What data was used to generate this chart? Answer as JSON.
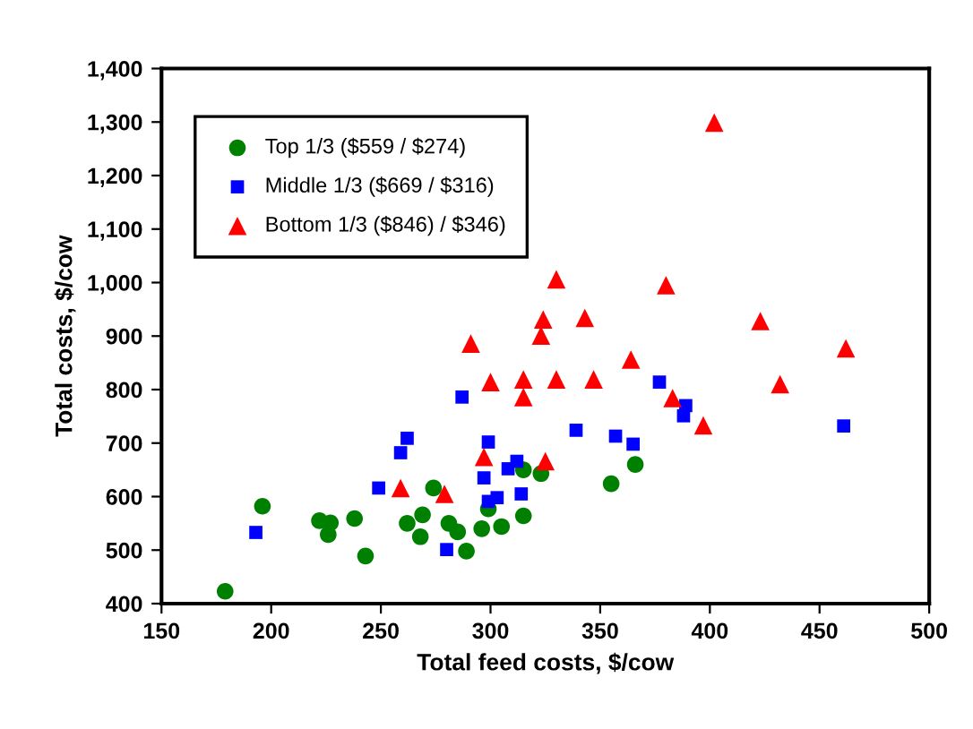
{
  "chart_data": {
    "type": "scatter",
    "xlabel": "Total feed costs, $/cow",
    "ylabel": "Total costs, $/cow",
    "xlim": [
      150,
      500
    ],
    "xticks": [
      150,
      200,
      250,
      300,
      350,
      400,
      450,
      500
    ],
    "ylim": [
      400,
      1400
    ],
    "yticks": [
      {
        "value": 400,
        "label": "400"
      },
      {
        "value": 500,
        "label": "500"
      },
      {
        "value": 600,
        "label": "600"
      },
      {
        "value": 700,
        "label": "700"
      },
      {
        "value": 800,
        "label": "800"
      },
      {
        "value": 900,
        "label": "900"
      },
      {
        "value": 1000,
        "label": "1,000"
      },
      {
        "value": 1100,
        "label": "1,100"
      },
      {
        "value": 1200,
        "label": "1,200"
      },
      {
        "value": 1300,
        "label": "1,300"
      },
      {
        "value": 1400,
        "label": "1,400"
      }
    ],
    "grid": false,
    "legend": "top left",
    "series": [
      {
        "name": "Top 1/3 ($559 / $274)",
        "color": "#008000",
        "marker": "circle",
        "x": [
          179,
          196,
          222,
          227,
          226,
          238,
          243,
          262,
          269,
          268,
          274,
          281,
          285,
          289,
          296,
          299,
          305,
          315,
          315,
          323,
          355,
          366
        ],
        "values": [
          423,
          582,
          555,
          551,
          529,
          559,
          489,
          550,
          566,
          525,
          616,
          550,
          534,
          498,
          540,
          577,
          544,
          650,
          564,
          643,
          624,
          660
        ]
      },
      {
        "name": "Middle 1/3 ($669 / $316)",
        "color": "#0000ff",
        "marker": "square",
        "x": [
          193,
          249,
          259,
          262,
          280,
          287,
          299,
          297,
          299,
          303,
          308,
          312,
          314,
          339,
          357,
          365,
          377,
          389,
          388,
          461
        ],
        "values": [
          533,
          616,
          682,
          709,
          501,
          786,
          702,
          635,
          591,
          598,
          652,
          666,
          605,
          724,
          713,
          698,
          814,
          770,
          751,
          732
        ]
      },
      {
        "name": "Bottom 1/3 ($846) / $346)",
        "color": "#ff0000",
        "marker": "triangle",
        "x": [
          259,
          279,
          291,
          297,
          300,
          315,
          315,
          323,
          324,
          325,
          330,
          330,
          343,
          347,
          364,
          380,
          383,
          397,
          402,
          423,
          432,
          462
        ],
        "values": [
          616,
          605,
          886,
          674,
          814,
          819,
          786,
          901,
          931,
          666,
          1006,
          819,
          934,
          819,
          856,
          995,
          784,
          733,
          1299,
          928,
          810,
          877
        ]
      }
    ]
  }
}
